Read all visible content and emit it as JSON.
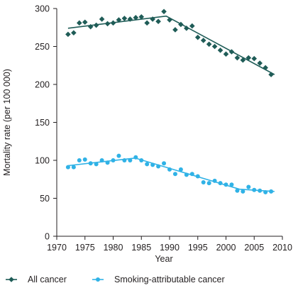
{
  "chart_data": {
    "type": "scatter",
    "title": "",
    "xlabel": "Year",
    "ylabel": "Mortality rate (per 100 000)",
    "xlim": [
      1970,
      2010
    ],
    "ylim": [
      0,
      300
    ],
    "x_ticks": [
      1970,
      1975,
      1980,
      1985,
      1990,
      1995,
      2000,
      2005,
      2010
    ],
    "y_ticks": [
      0,
      50,
      100,
      150,
      200,
      250,
      300
    ],
    "grid": false,
    "legend_position": "bottom",
    "series": [
      {
        "name": "All cancer",
        "color": "#1f5c57",
        "marker": "diamond",
        "x": [
          1972,
          1973,
          1974,
          1975,
          1976,
          1977,
          1978,
          1979,
          1980,
          1981,
          1982,
          1983,
          1984,
          1985,
          1986,
          1987,
          1988,
          1989,
          1990,
          1991,
          1992,
          1993,
          1994,
          1995,
          1996,
          1997,
          1998,
          1999,
          2000,
          2001,
          2002,
          2003,
          2004,
          2005,
          2006,
          2007,
          2008
        ],
        "y": [
          266,
          268,
          281,
          282,
          276,
          278,
          286,
          280,
          281,
          285,
          287,
          286,
          288,
          289,
          281,
          286,
          283,
          296,
          285,
          272,
          279,
          274,
          277,
          262,
          258,
          253,
          250,
          245,
          240,
          243,
          235,
          232,
          235,
          234,
          228,
          222,
          213
        ],
        "trend": {
          "x": [
            1972,
            1989.4,
            2008.6
          ],
          "y": [
            274,
            290,
            213
          ]
        }
      },
      {
        "name": "Smoking-attributable cancer",
        "color": "#30b2e6",
        "marker": "circle",
        "x": [
          1972,
          1973,
          1974,
          1975,
          1976,
          1977,
          1978,
          1979,
          1980,
          1981,
          1982,
          1983,
          1984,
          1985,
          1986,
          1987,
          1988,
          1989,
          1990,
          1991,
          1992,
          1993,
          1994,
          1995,
          1996,
          1997,
          1998,
          1999,
          2000,
          2001,
          2002,
          2003,
          2004,
          2005,
          2006,
          2007,
          2008
        ],
        "y": [
          91,
          91,
          100,
          101,
          96,
          95,
          100,
          97,
          100,
          106,
          100,
          100,
          104,
          100,
          95,
          94,
          92,
          96,
          88,
          82,
          88,
          81,
          82,
          79,
          71,
          70,
          73,
          70,
          68,
          68,
          60,
          59,
          65,
          61,
          60,
          58,
          59
        ],
        "trend": {
          "x": [
            1972,
            1983.9,
            2002.4,
            2008.6
          ],
          "y": [
            93,
            103,
            62,
            59
          ]
        }
      }
    ]
  }
}
